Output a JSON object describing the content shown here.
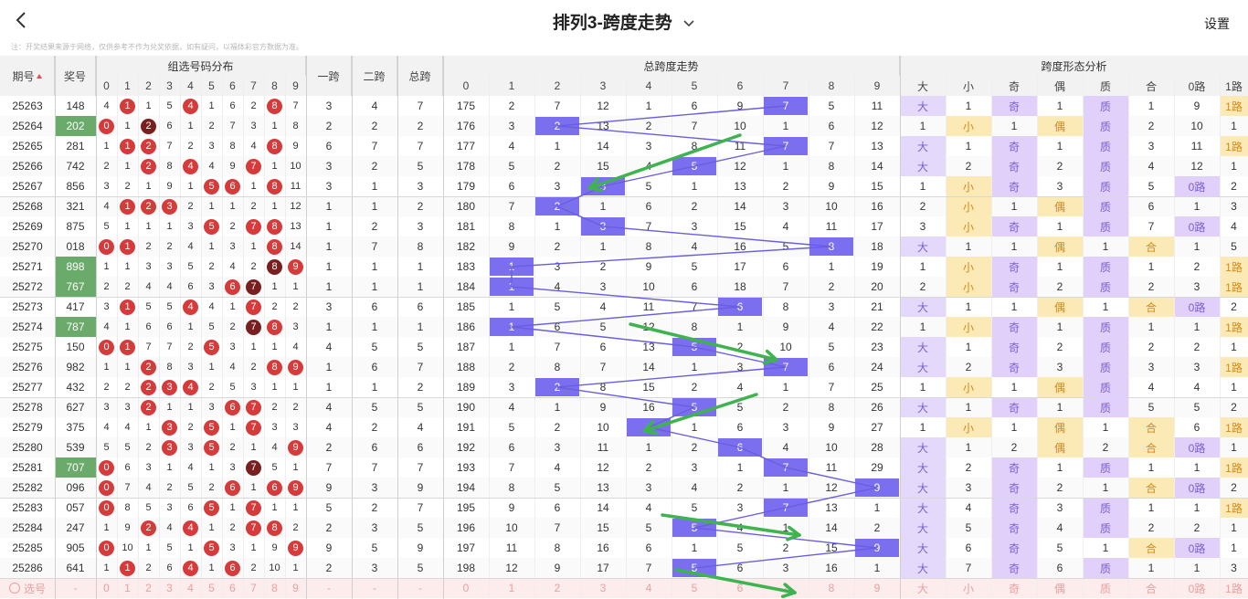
{
  "header": {
    "title": "排列3-跨度走势",
    "settings_label": "设置",
    "notice": "注：开奖结果来源于网络，仅供参考不作为兑奖依据，如有疑问，以福体彩官方数据为准。"
  },
  "columns": {
    "period": "期号",
    "award": "奖号",
    "group_dist": "组选号码分布",
    "span1": "一跨",
    "span2": "二跨",
    "total_span": "总跨",
    "total_trend": "总跨度走势",
    "shape_analysis": "跨度形态分析",
    "digits": [
      "0",
      "1",
      "2",
      "3",
      "4",
      "5",
      "6",
      "7",
      "8",
      "9"
    ],
    "trend_digits": [
      "0",
      "1",
      "2",
      "3",
      "4",
      "5",
      "6",
      "7",
      "8",
      "9"
    ],
    "shape": [
      "大",
      "小",
      "奇",
      "偶",
      "质",
      "合",
      "0路",
      "1路"
    ]
  },
  "rows": [
    {
      "period": "25263",
      "award": "148",
      "hl": false,
      "dist": [
        "4",
        "r1",
        "1",
        "5",
        "r4",
        "1",
        "6",
        "2",
        "r8",
        "7"
      ],
      "s1": "3",
      "s2": "4",
      "st": "7",
      "trend": [
        "175",
        "2",
        "7",
        "12",
        "1",
        "6",
        "9",
        "7",
        "5",
        "11"
      ],
      "span": 7,
      "shape": [
        "大",
        "1",
        "奇",
        "1",
        "质",
        "1",
        "9",
        "1路"
      ]
    },
    {
      "period": "25264",
      "award": "202",
      "hl": true,
      "dist": [
        "r0",
        "1",
        "d2",
        "6",
        "1",
        "2",
        "7",
        "3",
        "1",
        "8"
      ],
      "s1": "2",
      "s2": "2",
      "st": "2",
      "trend": [
        "176",
        "3",
        "2",
        "13",
        "2",
        "7",
        "10",
        "1",
        "6",
        "12"
      ],
      "span": 2,
      "shape": [
        "1",
        "小",
        "1",
        "偶",
        "质",
        "2",
        "10",
        "1"
      ]
    },
    {
      "period": "25265",
      "award": "281",
      "hl": false,
      "dist": [
        "1",
        "r1",
        "r2",
        "7",
        "2",
        "3",
        "8",
        "4",
        "r8",
        "9"
      ],
      "s1": "6",
      "s2": "7",
      "st": "7",
      "trend": [
        "177",
        "4",
        "1",
        "14",
        "3",
        "8",
        "11",
        "7",
        "7",
        "13"
      ],
      "span": 7,
      "shape": [
        "大",
        "1",
        "奇",
        "1",
        "质",
        "3",
        "11",
        "1路"
      ]
    },
    {
      "period": "25266",
      "award": "742",
      "hl": false,
      "dist": [
        "2",
        "1",
        "r2",
        "8",
        "r4",
        "4",
        "9",
        "r7",
        "1",
        "10"
      ],
      "s1": "3",
      "s2": "2",
      "st": "5",
      "trend": [
        "178",
        "5",
        "2",
        "15",
        "4",
        "5",
        "12",
        "1",
        "8",
        "14"
      ],
      "span": 5,
      "shape": [
        "大",
        "2",
        "奇",
        "2",
        "质",
        "4",
        "12",
        "1"
      ]
    },
    {
      "period": "25267",
      "award": "856",
      "hl": false,
      "dist": [
        "3",
        "2",
        "1",
        "9",
        "1",
        "r5",
        "r6",
        "1",
        "r8",
        "11"
      ],
      "s1": "3",
      "s2": "1",
      "st": "3",
      "trend": [
        "179",
        "6",
        "3",
        "3",
        "5",
        "1",
        "13",
        "2",
        "9",
        "15"
      ],
      "span": 3,
      "shape": [
        "1",
        "小",
        "奇",
        "3",
        "质",
        "5",
        "0路",
        "2"
      ]
    },
    {
      "period": "25268",
      "award": "321",
      "hl": false,
      "dist": [
        "4",
        "r1",
        "r2",
        "r3",
        "2",
        "1",
        "1",
        "2",
        "1",
        "12"
      ],
      "s1": "1",
      "s2": "1",
      "st": "2",
      "trend": [
        "180",
        "7",
        "2",
        "1",
        "6",
        "2",
        "14",
        "3",
        "10",
        "16"
      ],
      "span": 2,
      "shape": [
        "2",
        "小",
        "1",
        "偶",
        "质",
        "6",
        "1",
        "3"
      ]
    },
    {
      "period": "25269",
      "award": "875",
      "hl": false,
      "dist": [
        "5",
        "1",
        "1",
        "1",
        "3",
        "r5",
        "2",
        "r7",
        "r8",
        "13"
      ],
      "s1": "1",
      "s2": "2",
      "st": "3",
      "trend": [
        "181",
        "8",
        "1",
        "3",
        "7",
        "3",
        "15",
        "4",
        "11",
        "17"
      ],
      "span": 3,
      "shape": [
        "3",
        "小",
        "奇",
        "1",
        "质",
        "7",
        "0路",
        "4"
      ]
    },
    {
      "period": "25270",
      "award": "018",
      "hl": false,
      "dist": [
        "r0",
        "r1",
        "2",
        "2",
        "4",
        "1",
        "3",
        "1",
        "r8",
        "14"
      ],
      "s1": "1",
      "s2": "7",
      "st": "8",
      "trend": [
        "182",
        "9",
        "2",
        "1",
        "8",
        "4",
        "16",
        "5",
        "8",
        "18"
      ],
      "span": 8,
      "shape": [
        "大",
        "1",
        "1",
        "偶",
        "1",
        "合",
        "1",
        "5"
      ]
    },
    {
      "period": "25271",
      "award": "898",
      "hl": true,
      "dist": [
        "1",
        "1",
        "3",
        "3",
        "5",
        "2",
        "4",
        "2",
        "d8",
        "r9"
      ],
      "s1": "1",
      "s2": "1",
      "st": "1",
      "trend": [
        "183",
        "1",
        "3",
        "2",
        "9",
        "5",
        "17",
        "6",
        "1",
        "19"
      ],
      "span": 1,
      "shape": [
        "1",
        "小",
        "奇",
        "1",
        "质",
        "1",
        "2",
        "1路"
      ]
    },
    {
      "period": "25272",
      "award": "767",
      "hl": true,
      "dist": [
        "2",
        "2",
        "4",
        "4",
        "6",
        "3",
        "r6",
        "d7",
        "1",
        "1"
      ],
      "s1": "1",
      "s2": "1",
      "st": "1",
      "trend": [
        "184",
        "1",
        "4",
        "3",
        "10",
        "6",
        "18",
        "7",
        "2",
        "20"
      ],
      "span": 1,
      "shape": [
        "2",
        "小",
        "奇",
        "2",
        "质",
        "2",
        "3",
        "1路"
      ]
    },
    {
      "period": "25273",
      "award": "417",
      "hl": false,
      "dist": [
        "3",
        "r1",
        "5",
        "5",
        "r4",
        "4",
        "1",
        "r7",
        "2",
        "2"
      ],
      "s1": "3",
      "s2": "6",
      "st": "6",
      "trend": [
        "185",
        "1",
        "5",
        "4",
        "11",
        "7",
        "6",
        "8",
        "3",
        "21"
      ],
      "span": 6,
      "shape": [
        "大",
        "1",
        "1",
        "偶",
        "1",
        "合",
        "0路",
        "2"
      ]
    },
    {
      "period": "25274",
      "award": "787",
      "hl": true,
      "dist": [
        "4",
        "1",
        "6",
        "6",
        "1",
        "5",
        "2",
        "d7",
        "r8",
        "3"
      ],
      "s1": "1",
      "s2": "1",
      "st": "1",
      "trend": [
        "186",
        "1",
        "6",
        "5",
        "12",
        "8",
        "1",
        "9",
        "4",
        "22"
      ],
      "span": 1,
      "shape": [
        "1",
        "小",
        "奇",
        "1",
        "质",
        "1",
        "1",
        "1路"
      ]
    },
    {
      "period": "25275",
      "award": "150",
      "hl": false,
      "dist": [
        "r0",
        "r1",
        "7",
        "7",
        "2",
        "r5",
        "3",
        "1",
        "1",
        "4"
      ],
      "s1": "4",
      "s2": "5",
      "st": "5",
      "trend": [
        "187",
        "1",
        "7",
        "6",
        "13",
        "5",
        "2",
        "10",
        "5",
        "23"
      ],
      "span": 5,
      "shape": [
        "大",
        "1",
        "奇",
        "2",
        "质",
        "2",
        "2",
        "1"
      ]
    },
    {
      "period": "25276",
      "award": "982",
      "hl": false,
      "dist": [
        "1",
        "1",
        "r2",
        "8",
        "3",
        "1",
        "4",
        "2",
        "r8",
        "r9"
      ],
      "s1": "1",
      "s2": "6",
      "st": "7",
      "trend": [
        "188",
        "2",
        "8",
        "7",
        "14",
        "1",
        "3",
        "7",
        "6",
        "24"
      ],
      "span": 7,
      "shape": [
        "大",
        "2",
        "奇",
        "3",
        "质",
        "3",
        "3",
        "1路"
      ]
    },
    {
      "period": "25277",
      "award": "432",
      "hl": false,
      "dist": [
        "2",
        "2",
        "r2",
        "r3",
        "r4",
        "2",
        "5",
        "3",
        "1",
        "1"
      ],
      "s1": "1",
      "s2": "1",
      "st": "2",
      "trend": [
        "189",
        "3",
        "2",
        "8",
        "15",
        "2",
        "4",
        "1",
        "7",
        "25"
      ],
      "span": 2,
      "shape": [
        "1",
        "小",
        "1",
        "偶",
        "质",
        "4",
        "4",
        "1"
      ]
    },
    {
      "period": "25278",
      "award": "627",
      "hl": false,
      "dist": [
        "3",
        "3",
        "r2",
        "1",
        "1",
        "3",
        "r6",
        "r7",
        "2",
        "2"
      ],
      "s1": "4",
      "s2": "5",
      "st": "5",
      "trend": [
        "190",
        "4",
        "1",
        "9",
        "16",
        "5",
        "5",
        "2",
        "8",
        "26"
      ],
      "span": 5,
      "shape": [
        "大",
        "1",
        "奇",
        "1",
        "质",
        "5",
        "5",
        "2"
      ]
    },
    {
      "period": "25279",
      "award": "375",
      "hl": false,
      "dist": [
        "4",
        "4",
        "1",
        "r3",
        "2",
        "r5",
        "1",
        "r7",
        "3",
        "3"
      ],
      "s1": "4",
      "s2": "2",
      "st": "4",
      "trend": [
        "191",
        "5",
        "2",
        "10",
        "4",
        "1",
        "6",
        "3",
        "9",
        "27"
      ],
      "span": 4,
      "shape": [
        "1",
        "小",
        "1",
        "偶",
        "1",
        "合",
        "6",
        "1路"
      ]
    },
    {
      "period": "25280",
      "award": "539",
      "hl": false,
      "dist": [
        "5",
        "5",
        "2",
        "r3",
        "3",
        "r5",
        "2",
        "1",
        "4",
        "r9"
      ],
      "s1": "2",
      "s2": "6",
      "st": "6",
      "trend": [
        "192",
        "6",
        "3",
        "11",
        "1",
        "2",
        "6",
        "4",
        "10",
        "28"
      ],
      "span": 6,
      "shape": [
        "大",
        "1",
        "2",
        "偶",
        "2",
        "合",
        "0路",
        "1"
      ]
    },
    {
      "period": "25281",
      "award": "707",
      "hl": true,
      "dist": [
        "r0",
        "6",
        "3",
        "1",
        "4",
        "1",
        "3",
        "d7",
        "5",
        "1"
      ],
      "s1": "7",
      "s2": "7",
      "st": "7",
      "trend": [
        "193",
        "7",
        "4",
        "12",
        "2",
        "3",
        "1",
        "7",
        "11",
        "29"
      ],
      "span": 7,
      "shape": [
        "大",
        "2",
        "奇",
        "1",
        "质",
        "1",
        "1",
        "1路"
      ]
    },
    {
      "period": "25282",
      "award": "096",
      "hl": false,
      "dist": [
        "r0",
        "7",
        "4",
        "2",
        "5",
        "2",
        "r6",
        "1",
        "r6",
        "r9"
      ],
      "s1": "9",
      "s2": "3",
      "st": "9",
      "trend": [
        "194",
        "8",
        "5",
        "13",
        "3",
        "4",
        "2",
        "1",
        "12",
        "9"
      ],
      "span": 9,
      "shape": [
        "大",
        "3",
        "奇",
        "2",
        "1",
        "合",
        "0路",
        "2"
      ]
    },
    {
      "period": "25283",
      "award": "057",
      "hl": false,
      "dist": [
        "r0",
        "8",
        "5",
        "3",
        "6",
        "r5",
        "1",
        "r7",
        "1",
        "1"
      ],
      "s1": "5",
      "s2": "2",
      "st": "7",
      "trend": [
        "195",
        "9",
        "6",
        "14",
        "4",
        "5",
        "3",
        "7",
        "13",
        "1"
      ],
      "span": 7,
      "shape": [
        "大",
        "4",
        "奇",
        "3",
        "质",
        "1",
        "1",
        "1路"
      ]
    },
    {
      "period": "25284",
      "award": "247",
      "hl": false,
      "dist": [
        "1",
        "9",
        "r2",
        "4",
        "r4",
        "1",
        "2",
        "r7",
        "r8",
        "2"
      ],
      "s1": "2",
      "s2": "3",
      "st": "5",
      "trend": [
        "196",
        "10",
        "7",
        "15",
        "5",
        "5",
        "4",
        "1",
        "14",
        "2"
      ],
      "span": 5,
      "shape": [
        "大",
        "5",
        "奇",
        "4",
        "质",
        "2",
        "2",
        "1"
      ]
    },
    {
      "period": "25285",
      "award": "905",
      "hl": false,
      "dist": [
        "r0",
        "10",
        "1",
        "5",
        "1",
        "r5",
        "3",
        "1",
        "9",
        "r9"
      ],
      "s1": "9",
      "s2": "5",
      "st": "9",
      "trend": [
        "197",
        "11",
        "8",
        "16",
        "6",
        "1",
        "5",
        "2",
        "15",
        "9"
      ],
      "span": 9,
      "shape": [
        "大",
        "6",
        "奇",
        "5",
        "1",
        "合",
        "0路",
        "1"
      ]
    },
    {
      "period": "25286",
      "award": "641",
      "hl": false,
      "dist": [
        "1",
        "r1",
        "2",
        "6",
        "r4",
        "1",
        "r6",
        "2",
        "10",
        "1"
      ],
      "s1": "2",
      "s2": "3",
      "st": "5",
      "trend": [
        "198",
        "12",
        "9",
        "17",
        "7",
        "5",
        "6",
        "3",
        "16",
        "1"
      ],
      "span": 5,
      "shape": [
        "大",
        "7",
        "奇",
        "6",
        "质",
        "1",
        "1",
        "3"
      ]
    }
  ],
  "select_row": {
    "label": "选号",
    "award": "-",
    "dist": [
      "0",
      "1",
      "2",
      "3",
      "4",
      "5",
      "6",
      "7",
      "8",
      "9"
    ],
    "s1": "-",
    "s2": "-",
    "st": "-",
    "trend": [
      "0",
      "1",
      "2",
      "3",
      "4",
      "5",
      "6",
      "7",
      "8",
      "9"
    ],
    "shape": [
      "大",
      "小",
      "奇",
      "偶",
      "质",
      "合",
      "0路",
      "1路"
    ]
  },
  "colors": {
    "red_ball": "#d63a3a",
    "dark_ball": "#7a1f1f",
    "chip": "#7b6ff0",
    "trend_line": "#6a5de0",
    "green_arrow": "#3fb34f",
    "highlight_award": "#6aaa6a",
    "big": "#e4d8fb",
    "small": "#fbe9b6",
    "odd": "#e0d0fa",
    "even": "#fbe9b6",
    "prime": "#e0d0fa",
    "composite": "#fbe9b6",
    "route0": "#e0d0fa",
    "route1": "#fbe9b6"
  },
  "icons": {
    "back": "chevron-left-icon",
    "title_dropdown": "chevron-down-icon",
    "sort": "sort-icon",
    "select_radio": "radio-icon"
  }
}
